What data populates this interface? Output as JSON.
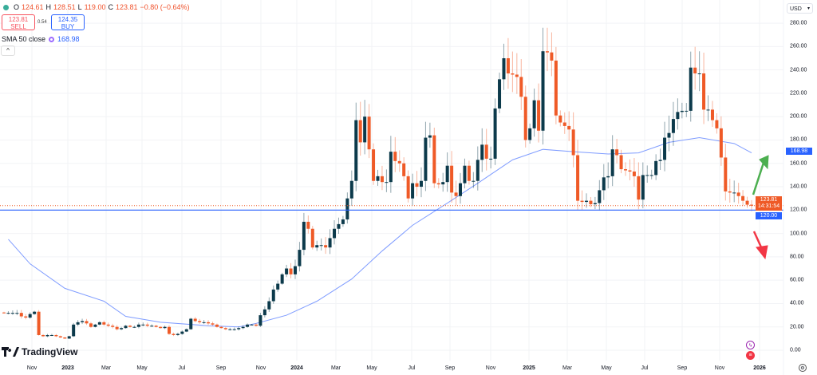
{
  "legend": {
    "open_label": "O",
    "open": "124.61",
    "high_label": "H",
    "high": "128.51",
    "low_label": "L",
    "low": "119.00",
    "close_label": "C",
    "close": "123.81",
    "change": "−0.80 (−0.64%)"
  },
  "trade": {
    "sell_price": "123.81",
    "sell_label": "SELL",
    "spread": "0.54",
    "buy_price": "124.35",
    "buy_label": "BUY"
  },
  "indicator": {
    "label": "SMA 50 close",
    "value": "168.98"
  },
  "collapse_icon": "^",
  "currency": "USD",
  "badges": {
    "sma": "168.98",
    "last_price": "123.81",
    "countdown": "14:31:54",
    "hline": "120.00"
  },
  "logo_text": "TradingView",
  "colors": {
    "up": "#0c3a4b",
    "down": "#ef5a27",
    "sma": "#7f9cff",
    "hline": "#2962ff",
    "arrow_up": "#4caf50",
    "arrow_down": "#f23645"
  },
  "chart_data": {
    "type": "candlestick",
    "interval": "weekly",
    "ylim": [
      0,
      285
    ],
    "y_ticks": [
      "280.00",
      "260.00",
      "240.00",
      "220.00",
      "200.00",
      "180.00",
      "160.00",
      "140.00",
      "120.00",
      "100.00",
      "80.00",
      "60.00",
      "40.00",
      "20.00",
      "0.00"
    ],
    "x_ticks": [
      "Nov",
      "2023",
      "Mar",
      "May",
      "Jul",
      "Sep",
      "Nov",
      "2024",
      "Mar",
      "May",
      "Jul",
      "Sep",
      "Nov",
      "2025",
      "Mar",
      "May",
      "Jul",
      "Sep",
      "Nov",
      "2026"
    ],
    "closes": [
      32,
      32,
      32,
      32,
      29,
      28,
      31,
      33,
      13,
      12,
      13,
      13,
      12,
      11,
      10,
      12,
      22,
      24,
      25,
      23,
      20,
      22,
      24,
      22,
      21,
      20,
      18,
      19,
      21,
      20,
      20,
      22,
      22,
      21,
      21,
      20,
      19,
      20,
      14,
      13,
      14,
      16,
      18,
      27,
      25,
      24,
      24,
      23,
      22,
      20,
      19,
      18,
      18,
      18,
      19,
      20,
      22,
      22,
      21,
      30,
      35,
      42,
      52,
      57,
      65,
      70,
      65,
      72,
      86,
      110,
      104,
      88,
      90,
      90,
      88,
      96,
      104,
      108,
      112,
      130,
      145,
      197,
      178,
      200,
      172,
      145,
      149,
      144,
      144,
      170,
      162,
      160,
      149,
      130,
      143,
      140,
      145,
      182,
      184,
      143,
      142,
      144,
      158,
      135,
      132,
      143,
      158,
      145,
      145,
      163,
      176,
      164,
      164,
      207,
      232,
      250,
      237,
      236,
      234,
      217,
      180,
      190,
      214,
      188,
      256,
      255,
      248,
      201,
      195,
      192,
      189,
      167,
      128,
      127,
      128,
      125,
      126,
      137,
      148,
      149,
      172,
      167,
      155,
      154,
      153,
      149,
      129,
      150,
      150,
      150,
      162,
      163,
      182,
      186,
      198,
      204,
      205,
      205,
      242,
      237,
      237,
      206,
      206,
      197,
      190,
      165,
      136,
      135,
      135,
      132,
      128,
      124.61,
      123.81
    ],
    "last_candle": {
      "open": 124.61,
      "high": 128.51,
      "low": 119.0,
      "close": 123.81
    },
    "sma50": {
      "name": "SMA 50 close",
      "points": [
        [
          1,
          95
        ],
        [
          6,
          74
        ],
        [
          14,
          53
        ],
        [
          23,
          42
        ],
        [
          28,
          29
        ],
        [
          36,
          24
        ],
        [
          47,
          21
        ],
        [
          54,
          20
        ],
        [
          58,
          23
        ],
        [
          65,
          30
        ],
        [
          72,
          42
        ],
        [
          80,
          61
        ],
        [
          87,
          85
        ],
        [
          94,
          107
        ],
        [
          102,
          126
        ],
        [
          109,
          143
        ],
        [
          117,
          163
        ],
        [
          124,
          172
        ],
        [
          131,
          170
        ],
        [
          139,
          168
        ],
        [
          146,
          169
        ],
        [
          153,
          178
        ],
        [
          160,
          182
        ],
        [
          168,
          177
        ],
        [
          172,
          168.98
        ]
      ]
    },
    "horizontal_line": 120,
    "last_price_line": 123.81,
    "annotations": [
      {
        "type": "arrow",
        "direction": "up",
        "color": "green"
      },
      {
        "type": "arrow",
        "direction": "down",
        "color": "red"
      }
    ]
  }
}
